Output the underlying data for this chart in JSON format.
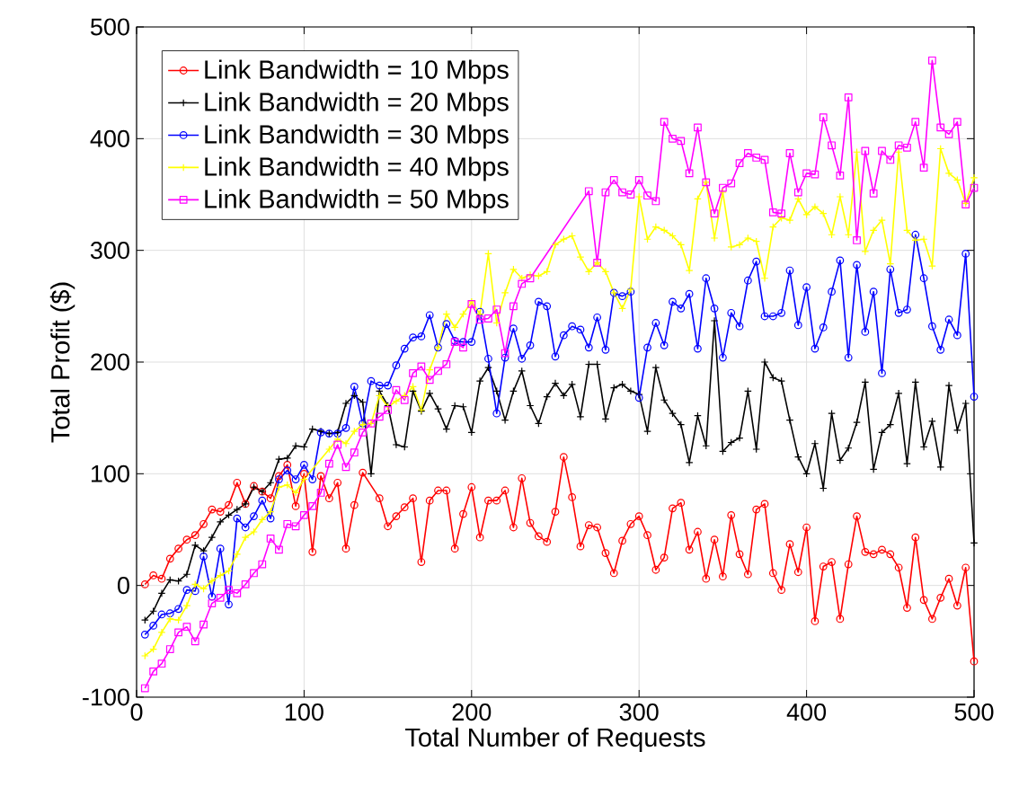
{
  "chart_data": {
    "type": "line",
    "xlabel": "Total Number of Requests",
    "ylabel": "Total Profit ($)",
    "xlim": [
      0,
      500
    ],
    "ylim": [
      -100,
      500
    ],
    "xticks": [
      0,
      100,
      200,
      300,
      400,
      500
    ],
    "yticks": [
      -100,
      0,
      100,
      200,
      300,
      400,
      500
    ],
    "grid": true,
    "legend": "top left",
    "line_style": "solid",
    "x": [
      5,
      10,
      15,
      20,
      25,
      30,
      35,
      40,
      45,
      50,
      55,
      60,
      65,
      70,
      75,
      80,
      85,
      90,
      95,
      100,
      105,
      110,
      115,
      120,
      125,
      130,
      135,
      140,
      145,
      150,
      155,
      160,
      165,
      170,
      175,
      180,
      185,
      190,
      195,
      200,
      205,
      210,
      215,
      220,
      225,
      230,
      235,
      240,
      245,
      250,
      255,
      260,
      265,
      270,
      275,
      280,
      285,
      290,
      295,
      300,
      305,
      310,
      315,
      320,
      325,
      330,
      335,
      340,
      345,
      350,
      355,
      360,
      365,
      370,
      375,
      380,
      385,
      390,
      395,
      400,
      405,
      410,
      415,
      420,
      425,
      430,
      435,
      440,
      445,
      450,
      455,
      460,
      465,
      470,
      475,
      480,
      485,
      490,
      495,
      500
    ],
    "series": [
      {
        "name": "Link Bandwidth = 10 Mbps",
        "color": "#ff0000",
        "marker": "circle",
        "x": [
          5,
          10,
          15,
          20,
          25,
          30,
          35,
          40,
          45,
          50,
          55,
          60,
          65,
          70,
          75,
          80,
          85,
          90,
          95,
          100,
          105,
          110,
          115,
          120,
          125,
          130,
          135,
          145,
          150,
          155,
          160,
          165,
          170,
          175,
          180,
          185,
          190,
          195,
          200,
          205,
          210,
          215,
          220,
          225,
          230,
          235,
          240,
          245,
          250,
          255,
          260,
          265,
          270,
          275,
          280,
          285,
          290,
          295,
          300,
          305,
          310,
          315,
          320,
          325,
          330,
          335,
          340,
          345,
          350,
          355,
          360,
          365,
          370,
          375,
          380,
          385,
          390,
          395,
          400,
          405,
          410,
          415,
          420,
          425,
          430,
          435,
          440,
          445,
          450,
          455,
          460,
          465,
          470,
          475,
          480,
          485,
          490,
          495,
          500
        ],
        "values": [
          1,
          9,
          6,
          24,
          33,
          41,
          45,
          55,
          68,
          66,
          72,
          92,
          73,
          89,
          84,
          78,
          98,
          108,
          71,
          100,
          30,
          98,
          78,
          92,
          33,
          72,
          101,
          78,
          53,
          62,
          70,
          78,
          21,
          76,
          85,
          85,
          33,
          64,
          88,
          43,
          76,
          76,
          85,
          52,
          96,
          56,
          44,
          39,
          66,
          115,
          79,
          35,
          54,
          52,
          29,
          11,
          40,
          55,
          62,
          45,
          14,
          25,
          69,
          74,
          32,
          48,
          6,
          41,
          8,
          63,
          28,
          10,
          68,
          73,
          11,
          -4,
          37,
          12,
          52,
          -32,
          17,
          21,
          -30,
          19,
          62,
          30,
          28,
          32,
          28,
          16,
          -20,
          43,
          -13,
          -30,
          -11,
          6,
          -18,
          16,
          -68
        ]
      },
      {
        "name": "Link Bandwidth = 20 Mbps",
        "color": "#000000",
        "marker": "cross",
        "values": [
          -31,
          -23,
          -7,
          5,
          4,
          10,
          36,
          31,
          43,
          57,
          63,
          68,
          73,
          88,
          84,
          92,
          113,
          114,
          125,
          124,
          140,
          138,
          136,
          137,
          163,
          170,
          164,
          100,
          174,
          161,
          126,
          124,
          174,
          156,
          172,
          158,
          140,
          161,
          160,
          137,
          183,
          195,
          174,
          148,
          174,
          192,
          161,
          145,
          169,
          181,
          170,
          180,
          151,
          198,
          198,
          149,
          177,
          180,
          174,
          171,
          138,
          195,
          166,
          154,
          144,
          110,
          152,
          125,
          237,
          120,
          128,
          132,
          174,
          122,
          200,
          186,
          183,
          148,
          115,
          100,
          127,
          87,
          154,
          112,
          123,
          146,
          182,
          104,
          137,
          144,
          172,
          109,
          182,
          124,
          147,
          106,
          179,
          139,
          163,
          38
        ]
      },
      {
        "name": "Link Bandwidth = 30 Mbps",
        "color": "#0000ff",
        "marker": "circle",
        "values": [
          -44,
          -36,
          -26,
          -25,
          -21,
          -4,
          -5,
          26,
          -10,
          33,
          -17,
          60,
          52,
          62,
          76,
          60,
          95,
          103,
          95,
          108,
          95,
          137,
          136,
          136,
          141,
          178,
          145,
          183,
          179,
          179,
          197,
          212,
          222,
          223,
          242,
          213,
          234,
          219,
          218,
          218,
          245,
          203,
          154,
          204,
          230,
          203,
          215,
          254,
          250,
          205,
          224,
          232,
          229,
          213,
          240,
          211,
          262,
          259,
          263,
          168,
          213,
          235,
          215,
          254,
          248,
          261,
          212,
          275,
          248,
          204,
          244,
          232,
          273,
          290,
          241,
          241,
          244,
          282,
          233,
          267,
          212,
          231,
          263,
          291,
          204,
          287,
          227,
          263,
          190,
          283,
          244,
          247,
          314,
          275,
          232,
          211,
          238,
          224,
          297,
          169
        ]
      },
      {
        "name": "Link Bandwidth = 40 Mbps",
        "color": "#ffff00",
        "marker": "cross",
        "x": [
          5,
          10,
          15,
          20,
          25,
          30,
          35,
          40,
          45,
          50,
          55,
          60,
          65,
          70,
          75,
          80,
          85,
          90,
          95,
          100,
          115,
          120,
          125,
          130,
          135,
          140,
          145,
          150,
          155,
          160,
          165,
          170,
          175,
          180,
          185,
          190,
          195,
          200,
          205,
          210,
          215,
          220,
          225,
          230,
          235,
          240,
          245,
          250,
          255,
          260,
          265,
          270,
          275,
          280,
          285,
          290,
          295,
          300,
          305,
          310,
          315,
          320,
          325,
          330,
          335,
          340,
          345,
          350,
          355,
          360,
          365,
          370,
          375,
          380,
          385,
          390,
          395,
          400,
          405,
          410,
          415,
          420,
          425,
          430,
          435,
          440,
          445,
          450,
          455,
          460,
          465,
          470,
          475,
          480,
          485,
          490,
          495,
          500
        ],
        "values": [
          -63,
          -57,
          -42,
          -30,
          -31,
          -18,
          1,
          -3,
          4,
          9,
          13,
          28,
          43,
          48,
          59,
          66,
          88,
          90,
          83,
          95,
          122,
          131,
          127,
          138,
          144,
          145,
          170,
          160,
          165,
          170,
          178,
          157,
          193,
          213,
          243,
          231,
          243,
          254,
          243,
          297,
          235,
          262,
          283,
          275,
          278,
          277,
          281,
          305,
          310,
          313,
          294,
          281,
          289,
          281,
          262,
          248,
          265,
          348,
          310,
          321,
          318,
          313,
          305,
          282,
          346,
          361,
          311,
          352,
          303,
          305,
          311,
          308,
          275,
          321,
          329,
          327,
          346,
          332,
          339,
          333,
          314,
          348,
          314,
          388,
          299,
          318,
          327,
          288,
          388,
          318,
          309,
          310,
          286,
          391,
          369,
          363,
          342,
          365
        ]
      },
      {
        "name": "Link Bandwidth = 50 Mbps",
        "color": "#ff00ff",
        "marker": "square",
        "x": [
          5,
          10,
          15,
          20,
          25,
          30,
          35,
          40,
          45,
          50,
          55,
          60,
          65,
          70,
          75,
          80,
          85,
          90,
          95,
          100,
          105,
          110,
          115,
          120,
          125,
          130,
          135,
          140,
          145,
          150,
          155,
          160,
          165,
          170,
          175,
          180,
          185,
          190,
          195,
          200,
          205,
          210,
          215,
          220,
          225,
          230,
          235,
          270,
          275,
          280,
          285,
          290,
          295,
          300,
          305,
          310,
          315,
          320,
          325,
          330,
          335,
          340,
          345,
          350,
          355,
          360,
          365,
          370,
          375,
          380,
          385,
          390,
          395,
          400,
          405,
          410,
          415,
          420,
          425,
          430,
          435,
          440,
          445,
          450,
          455,
          460,
          465,
          470,
          475,
          480,
          485,
          490,
          495,
          500
        ],
        "values": [
          -92,
          -77,
          -70,
          -57,
          -42,
          -37,
          -50,
          -35,
          -16,
          -11,
          -4,
          -7,
          1,
          11,
          19,
          42,
          32,
          55,
          53,
          63,
          71,
          83,
          109,
          126,
          106,
          119,
          137,
          145,
          151,
          157,
          175,
          166,
          190,
          196,
          184,
          192,
          198,
          218,
          213,
          252,
          238,
          239,
          247,
          208,
          250,
          270,
          275,
          353,
          289,
          352,
          363,
          352,
          350,
          363,
          349,
          344,
          415,
          400,
          398,
          369,
          410,
          361,
          333,
          356,
          360,
          378,
          387,
          383,
          381,
          334,
          333,
          387,
          352,
          369,
          368,
          419,
          394,
          367,
          437,
          309,
          389,
          351,
          389,
          381,
          394,
          392,
          415,
          374,
          470,
          410,
          404,
          415,
          341,
          356
        ]
      }
    ]
  }
}
